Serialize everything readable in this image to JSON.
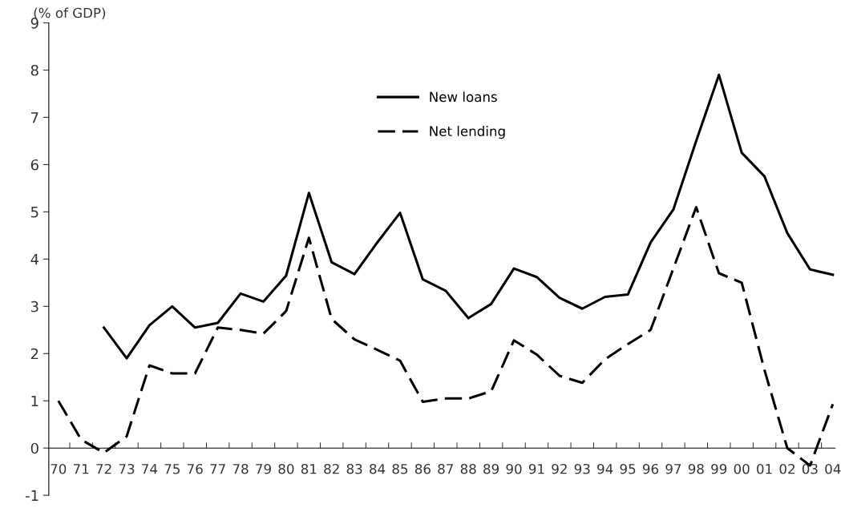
{
  "chart_data": {
    "type": "line",
    "ylabel": "(% of GDP)",
    "categories": [
      "70",
      "71",
      "72",
      "73",
      "74",
      "75",
      "76",
      "77",
      "78",
      "79",
      "80",
      "81",
      "82",
      "83",
      "84",
      "85",
      "86",
      "87",
      "88",
      "89",
      "90",
      "91",
      "92",
      "93",
      "94",
      "95",
      "96",
      "97",
      "98",
      "99",
      "00",
      "01",
      "02",
      "03",
      "04"
    ],
    "series": [
      {
        "name": "New loans",
        "color": "#000000",
        "line_style": "solid",
        "values": [
          null,
          null,
          2.55,
          1.9,
          2.6,
          3.0,
          2.55,
          2.65,
          3.27,
          3.1,
          3.65,
          5.4,
          3.93,
          3.68,
          4.35,
          4.98,
          3.57,
          3.33,
          2.75,
          3.05,
          3.8,
          3.62,
          3.18,
          2.95,
          3.2,
          3.25,
          4.35,
          5.05,
          6.5,
          7.9,
          6.25,
          5.75,
          4.55,
          3.78,
          3.67
        ]
      },
      {
        "name": "Net lending",
        "color": "#000000",
        "line_style": "dashed",
        "values": [
          1.0,
          0.18,
          -0.1,
          0.25,
          1.75,
          1.58,
          1.58,
          2.55,
          2.5,
          2.42,
          2.9,
          4.45,
          2.73,
          2.3,
          2.08,
          1.85,
          0.98,
          1.05,
          1.05,
          1.2,
          2.28,
          1.98,
          1.53,
          1.38,
          1.88,
          2.2,
          2.5,
          3.8,
          5.1,
          3.7,
          3.5,
          1.65,
          0.0,
          -0.37,
          0.93
        ]
      }
    ],
    "ylim": [
      -1,
      9
    ],
    "yticks": [
      -1,
      0,
      1,
      2,
      3,
      4,
      5,
      6,
      7,
      8,
      9
    ],
    "grid": false,
    "legend": "top",
    "marker": "none"
  }
}
